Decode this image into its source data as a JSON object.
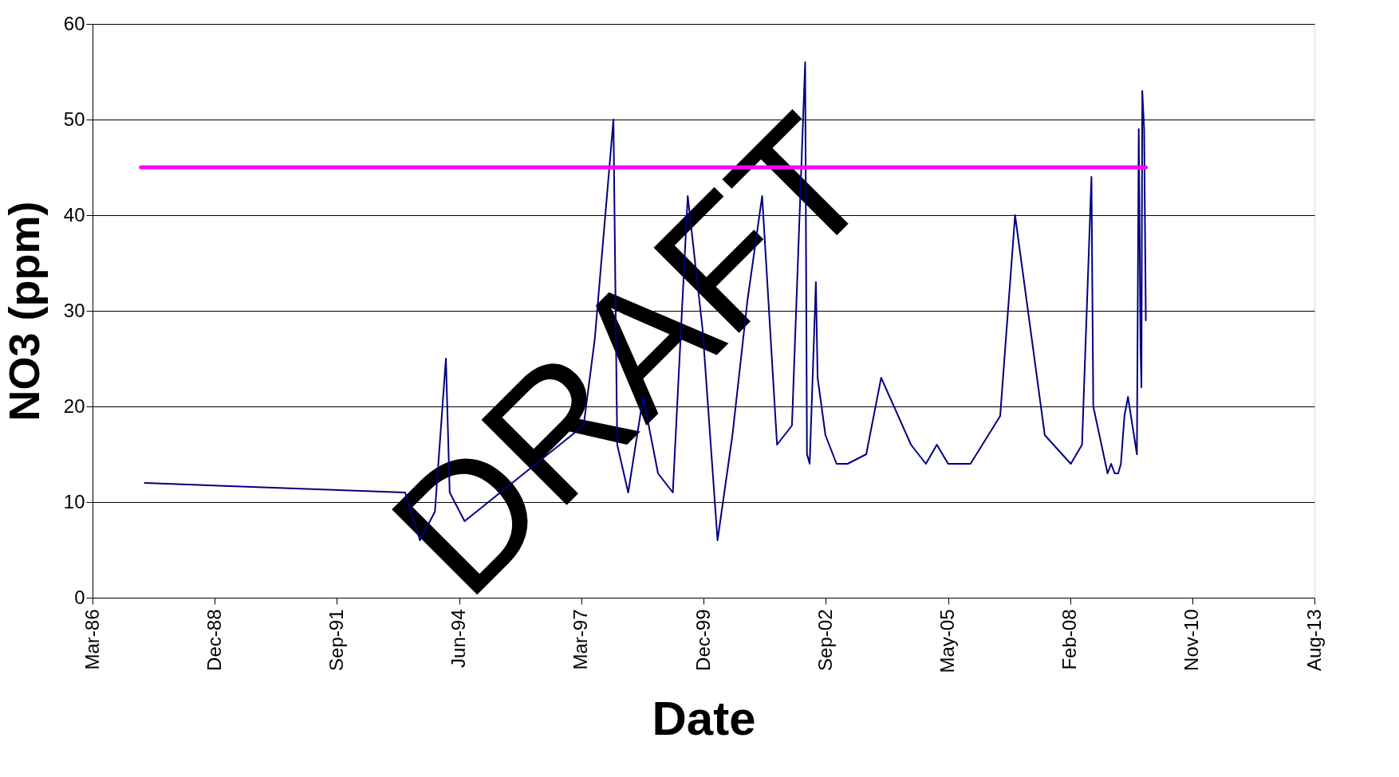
{
  "chart_data": {
    "type": "line",
    "xlabel": "Date",
    "ylabel": "NO3 (ppm)",
    "annotations": [
      "DRAFT"
    ],
    "xlim": [
      "1986-03-31",
      "2013-08-16"
    ],
    "xticks": [
      {
        "value": "1986-03-31",
        "label": "Mar-86"
      },
      {
        "value": "1988-12-25",
        "label": "Dec-88"
      },
      {
        "value": "1991-09-21",
        "label": "Sep-91"
      },
      {
        "value": "1994-06-17",
        "label": "Jun-94"
      },
      {
        "value": "1997-03-14",
        "label": "Mar-97"
      },
      {
        "value": "1999-12-09",
        "label": "Dec-99"
      },
      {
        "value": "2002-09-04",
        "label": "Sep-02"
      },
      {
        "value": "2005-05-31",
        "label": "May-05"
      },
      {
        "value": "2008-02-25",
        "label": "Feb-08"
      },
      {
        "value": "2010-11-21",
        "label": "Nov-10"
      },
      {
        "value": "2013-08-16",
        "label": "Aug-13"
      }
    ],
    "ylim": [
      0,
      60
    ],
    "yticks": [
      0,
      10,
      20,
      30,
      40,
      50,
      60
    ],
    "grid": "y",
    "marker": "none",
    "line_style": "solid",
    "series": [
      {
        "color": "#000080",
        "x": [
          "1987-06",
          "1993-04",
          "1993-08",
          "1993-12",
          "1994-03",
          "1994-04",
          "1994-08",
          "1997-04",
          "1997-07",
          "1997-12",
          "1998-01",
          "1998-04",
          "1998-08",
          "1998-12",
          "1999-04",
          "1999-08",
          "1999-12",
          "2000-04",
          "2000-08",
          "2000-12",
          "2001-04",
          "2001-08",
          "2001-12",
          "2002-03-19",
          "2002-04-03",
          "2002-04-25",
          "2002-06-15",
          "2002-06-29",
          "2002-09",
          "2002-12",
          "2003-03",
          "2003-08",
          "2003-12",
          "2004-08",
          "2004-12",
          "2005-03",
          "2005-06",
          "2005-12",
          "2006-08",
          "2006-12",
          "2007-08",
          "2008-03",
          "2008-06",
          "2008-08-17",
          "2008-09-01",
          "2008-12-27",
          "2009-01-25",
          "2009-02-23",
          "2009-03-24",
          "2009-04-15",
          "2009-05-14",
          "2009-06-12",
          "2009-08-24",
          "2009-09-08",
          "2009-09-23",
          "2009-09-30",
          "2009-10-07",
          "2009-10-22",
          "2009-10-29",
          "2009-11-05"
        ],
        "values": [
          12,
          11,
          6,
          9,
          25,
          11,
          8,
          18,
          27,
          50,
          16,
          11,
          21,
          13,
          11,
          42,
          28,
          6,
          17,
          31,
          42,
          16,
          18,
          56,
          15,
          14,
          33,
          23,
          17,
          14,
          14,
          15,
          23,
          16,
          14,
          16,
          14,
          14,
          19,
          40,
          17,
          14,
          16,
          44,
          20,
          13,
          14,
          13,
          13,
          14,
          19,
          21,
          15,
          49,
          26,
          22,
          53,
          49,
          39,
          29
        ]
      },
      {
        "color": "#ff00ff",
        "x": [
          "1987-05",
          "2009-11-05"
        ],
        "values": [
          45,
          45
        ]
      }
    ]
  }
}
